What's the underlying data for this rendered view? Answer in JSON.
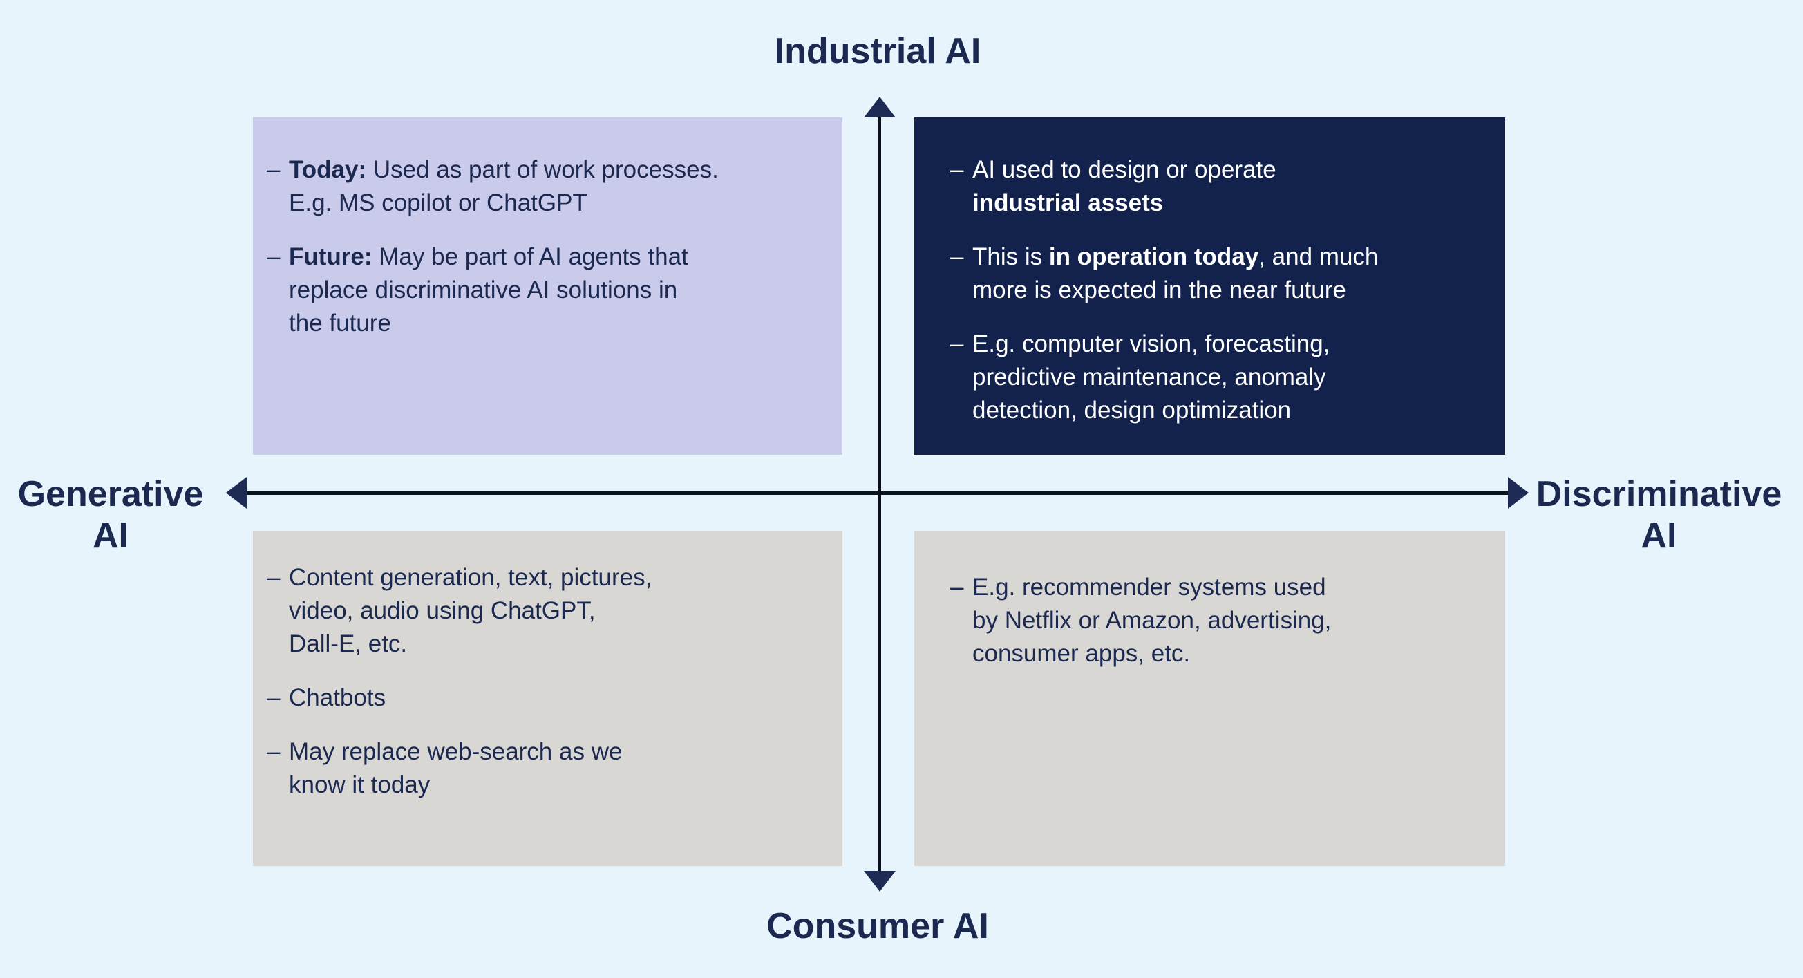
{
  "colors": {
    "bg": "#e8f4fc",
    "lavender": "#cacbeb",
    "navy": "#12224d",
    "gray": "#d8d7d4",
    "ink": "#1b2950",
    "line": "#0c1120",
    "arrow": "#1d2b55",
    "white_text": "#ffffff"
  },
  "diagram": {
    "bullet_dash": "–",
    "axis_labels": {
      "top": "Industrial AI",
      "bottom": "Consumer AI",
      "left": [
        "Generative",
        "AI"
      ],
      "right": [
        "Discriminative",
        "AI"
      ]
    }
  },
  "quadrants": {
    "top_left": {
      "bullets": [
        [
          {
            "t": "Today:",
            "b": true
          },
          {
            "t": " Used as part of work processes.\nE.g. MS copilot or ChatGPT"
          }
        ],
        [
          {
            "t": "Future:",
            "b": true
          },
          {
            "t": " May be part of AI agents that\nreplace discriminative AI solutions in\nthe future"
          }
        ]
      ]
    },
    "top_right": {
      "bullets": [
        [
          {
            "t": "AI used to design or operate\n"
          },
          {
            "t": "industrial assets",
            "b": true
          }
        ],
        [
          {
            "t": "This is "
          },
          {
            "t": "in operation today",
            "b": true
          },
          {
            "t": ", and much\nmore is expected in the near future"
          }
        ],
        [
          {
            "t": "E.g. computer vision, forecasting,\npredictive maintenance, anomaly\ndetection, design optimization"
          }
        ]
      ]
    },
    "bottom_left": {
      "bullets": [
        [
          {
            "t": "Content generation, text, pictures,\nvideo, audio using ChatGPT,\nDall-E, etc."
          }
        ],
        [
          {
            "t": "Chatbots"
          }
        ],
        [
          {
            "t": "May replace web-search as we\nknow it today"
          }
        ]
      ]
    },
    "bottom_right": {
      "bullets": [
        [
          {
            "t": "E.g. recommender systems used\nby Netflix or Amazon, advertising,\nconsumer apps, etc."
          }
        ]
      ]
    }
  }
}
